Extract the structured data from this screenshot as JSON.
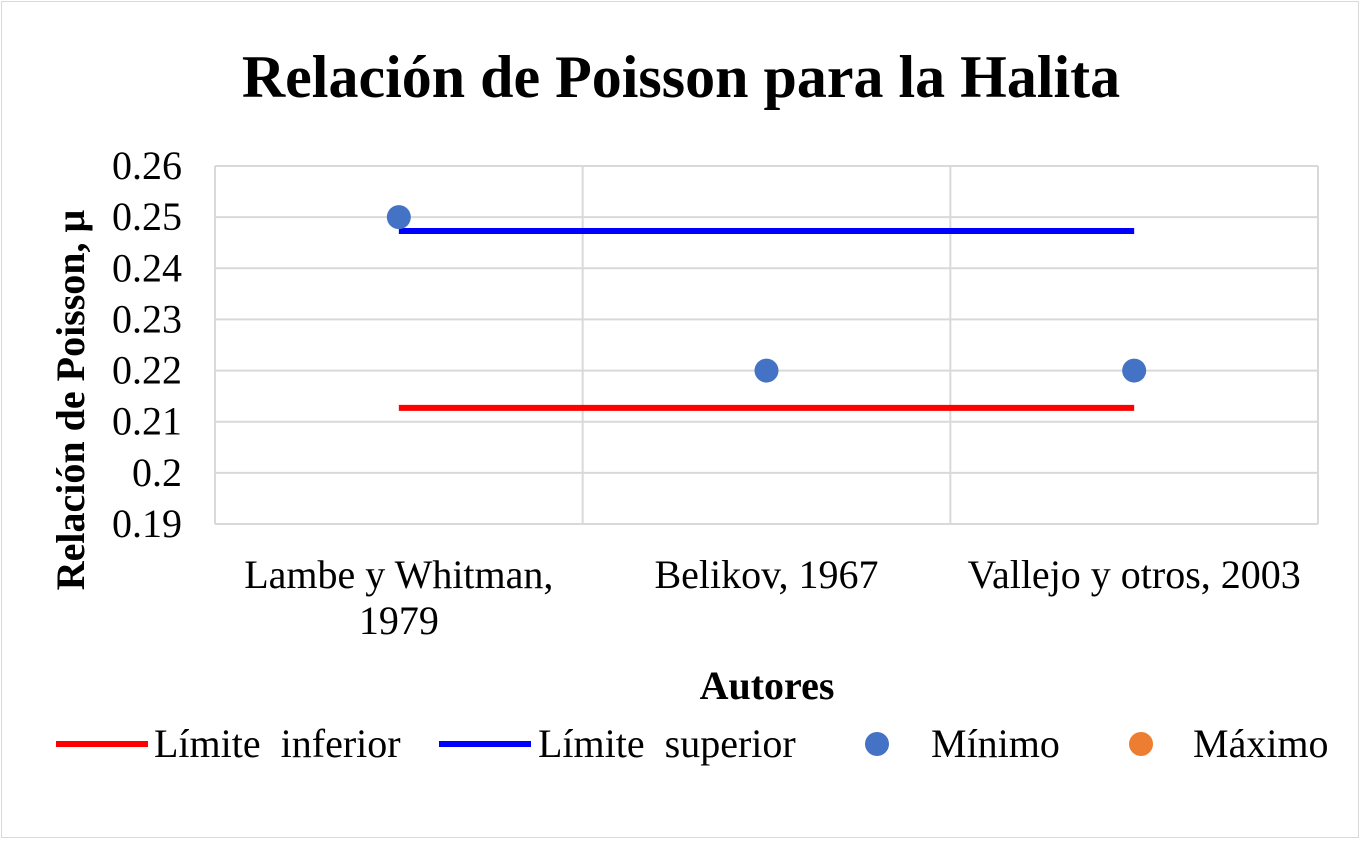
{
  "chart_data": {
    "type": "line",
    "title": "Relación de Poisson para la Halita",
    "xlabel": "Autores",
    "ylabel": "Relación de Poisson, μ",
    "categories": [
      [
        "Lambe y Whitman,",
        "1979"
      ],
      [
        "Belikov, 1967"
      ],
      [
        "Vallejo y otros, 2003"
      ]
    ],
    "ylim": [
      0.19,
      0.26
    ],
    "yticks": [
      0.19,
      0.2,
      0.21,
      0.22,
      0.23,
      0.24,
      0.25,
      0.26
    ],
    "ytick_labels": [
      "0.19",
      "0.2",
      "0.21",
      "0.22",
      "0.23",
      "0.24",
      "0.25",
      "0.26"
    ],
    "grid": true,
    "legend_position": "bottom",
    "series": [
      {
        "name": "Límite  inferior",
        "kind": "line",
        "color": "#ff0000",
        "values": [
          0.2127,
          0.2127,
          0.2127
        ]
      },
      {
        "name": "Límite  superior",
        "kind": "line",
        "color": "#0000ff",
        "values": [
          0.2473,
          0.2473,
          0.2473
        ]
      },
      {
        "name": "Mínimo",
        "kind": "marker",
        "color": "#4472c4",
        "values": [
          0.25,
          0.22,
          0.22
        ]
      },
      {
        "name": "Máximo",
        "kind": "marker",
        "color": "#ed7d31",
        "values": [
          null,
          null,
          null
        ]
      }
    ]
  }
}
